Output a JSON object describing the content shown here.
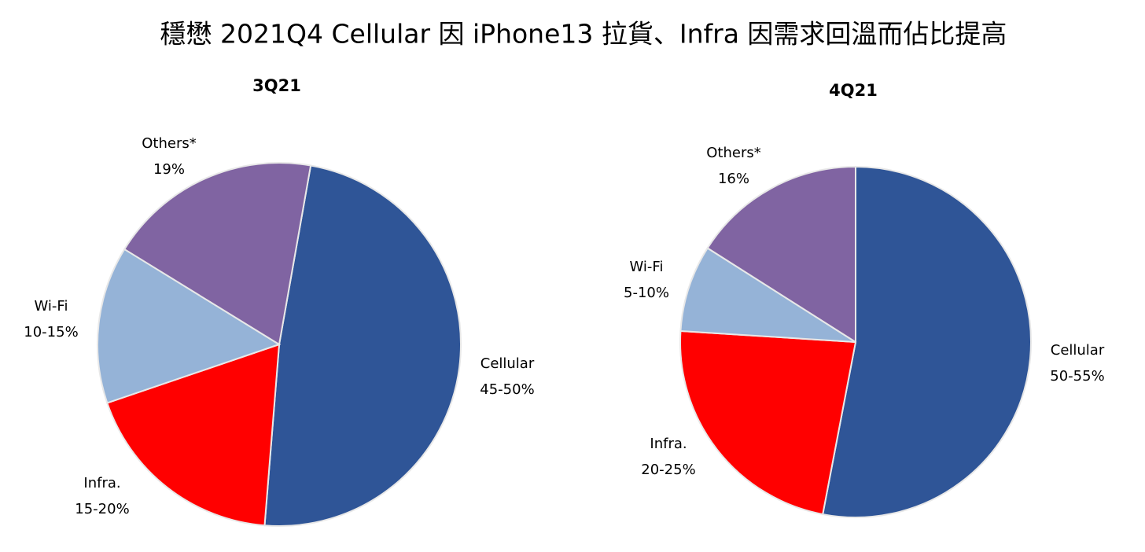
{
  "title": "穩懋 2021Q4 Cellular 因 iPhone13 拉貨、Infra 因需求回溫而佔比提高",
  "chart_data": [
    {
      "type": "pie",
      "title": "3Q21",
      "categories": [
        "Cellular",
        "Infra.",
        "Wi-Fi",
        "Others*"
      ],
      "values": [
        48.5,
        18.5,
        14,
        19
      ],
      "value_labels": [
        "45-50%",
        "15-20%",
        "10-15%",
        "19%"
      ],
      "colors": [
        "#2f5597",
        "#ff0000",
        "#95b3d7",
        "#8064a2"
      ]
    },
    {
      "type": "pie",
      "title": "4Q21",
      "categories": [
        "Cellular",
        "Infra.",
        "Wi-Fi",
        "Others*"
      ],
      "values": [
        53,
        23,
        8,
        16
      ],
      "value_labels": [
        "50-55%",
        "20-25%",
        "5-10%",
        "16%"
      ],
      "colors": [
        "#2f5597",
        "#ff0000",
        "#95b3d7",
        "#8064a2"
      ]
    }
  ]
}
